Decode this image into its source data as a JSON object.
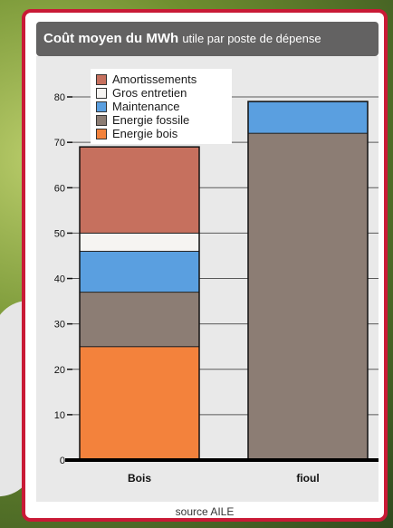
{
  "chart_data": {
    "type": "bar",
    "stacked": true,
    "title_bold": "Coût moyen du MWh",
    "title_rest": "utile par poste de dépense",
    "categories": [
      "Bois",
      "fioul"
    ],
    "series": [
      {
        "name": "Energie bois",
        "values": [
          25,
          0
        ],
        "color": "#f3823c"
      },
      {
        "name": "Energie fossile",
        "values": [
          12,
          72
        ],
        "color": "#8c7d74"
      },
      {
        "name": "Maintenance",
        "values": [
          9,
          7
        ],
        "color": "#5a9fe0"
      },
      {
        "name": "Gros entretien",
        "values": [
          4,
          0
        ],
        "color": "#f6f4f2"
      },
      {
        "name": "Amortissements",
        "values": [
          19,
          0
        ],
        "color": "#c6705e"
      }
    ],
    "legend_order": [
      "Amortissements",
      "Gros entretien",
      "Maintenance",
      "Energie fossile",
      "Energie bois"
    ],
    "ylim": [
      0,
      85
    ],
    "yticks": [
      0,
      10,
      20,
      30,
      40,
      50,
      60,
      70,
      80
    ],
    "grid": true,
    "legend_position": "top-left",
    "source": "source AILE"
  }
}
